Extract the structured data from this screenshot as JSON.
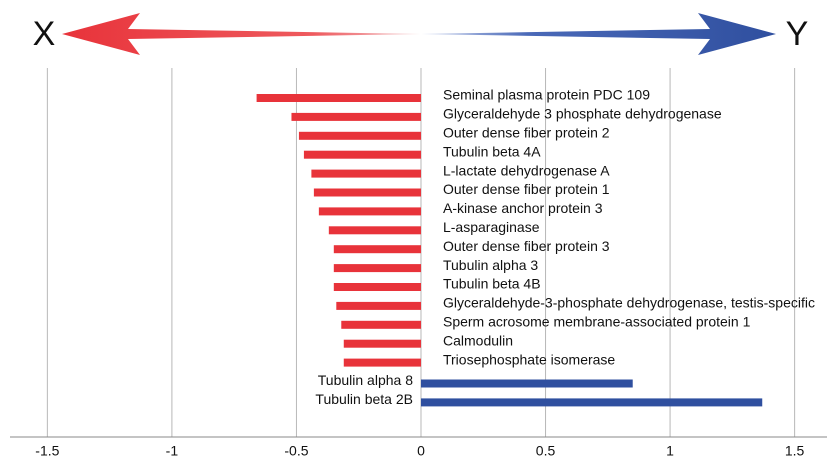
{
  "chart_data": {
    "type": "bar",
    "orientation": "horizontal",
    "direction_labels": [
      "X",
      "Y"
    ],
    "categories": [
      "Seminal plasma protein PDC 109",
      "Glyceraldehyde 3 phosphate dehydrogenase",
      "Outer dense fiber protein 2",
      "Tubulin beta 4A",
      "L-lactate dehydrogenase A",
      "Outer dense fiber protein 1",
      "A-kinase anchor protein 3",
      "L-asparaginase",
      "Outer dense fiber protein 3",
      "Tubulin alpha 3",
      "Tubulin beta 4B",
      "Glyceraldehyde-3-phosphate dehydrogenase, testis-specific",
      "Sperm acrosome membrane-associated protein 1",
      "Calmodulin",
      "Triosephosphate isomerase",
      "Tubulin alpha 8",
      "Tubulin beta 2B"
    ],
    "values": [
      -0.66,
      -0.52,
      -0.49,
      -0.47,
      -0.44,
      -0.43,
      -0.41,
      -0.37,
      -0.35,
      -0.35,
      -0.35,
      -0.34,
      -0.32,
      -0.31,
      -0.31,
      0.85,
      1.37
    ],
    "negative_color": "#e8333a",
    "positive_color": "#2f4f9f",
    "xlim": [
      -1.65,
      1.63
    ],
    "xticks": [
      -1.5,
      -1,
      -0.5,
      0,
      0.5,
      1,
      1.5
    ],
    "grid": true
  }
}
